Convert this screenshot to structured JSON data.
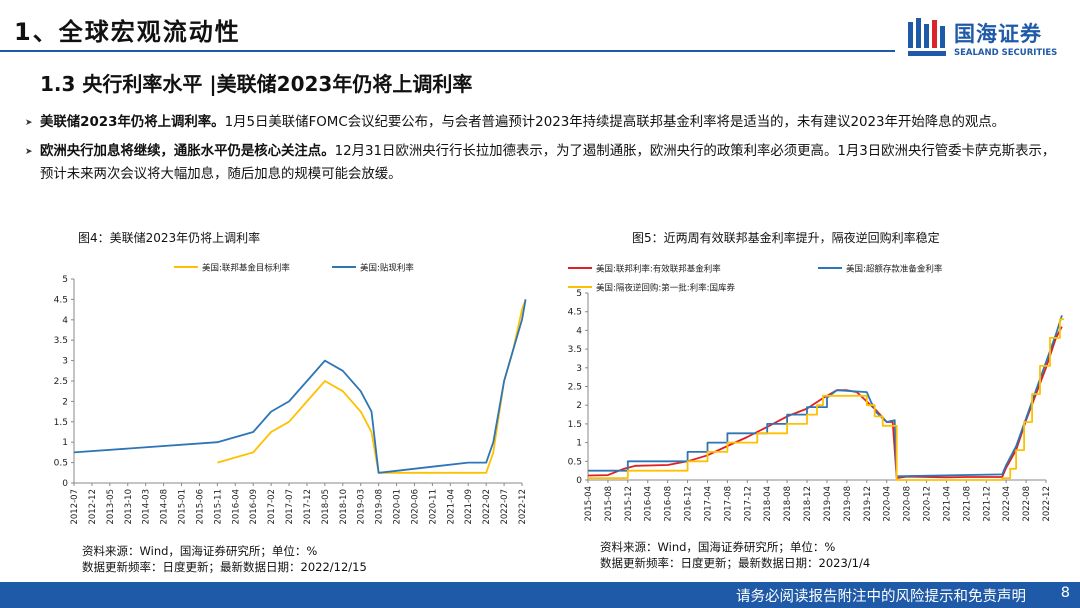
{
  "header": {
    "title": "1、全球宏观流动性"
  },
  "logo": {
    "cn": "国海证券",
    "en": "SEALAND SECURITIES"
  },
  "section": {
    "title": "1.3 央行利率水平 |美联储2023年仍将上调利率"
  },
  "bullets": [
    {
      "bold": "美联储2023年仍将上调利率。",
      "text": "1月5日美联储FOMC会议纪要公布，与会者普遍预计2023年持续提高联邦基金利率将是适当的，未有建议2023年开始降息的观点。"
    },
    {
      "bold": "欧洲央行加息将继续，通胀水平仍是核心关注点。",
      "text": "12月31日欧洲央行行长拉加德表示，为了遏制通胀，欧洲央行的政策利率必须更高。1月3日欧洲央行管委卡萨克斯表示，预计未来两次会议将大幅加息，随后加息的规模可能会放缓。"
    }
  ],
  "footer": {
    "text": "请务必阅读报告附注中的风险提示和免责声明",
    "page": "8"
  },
  "colors": {
    "brand": "#1f5aa8",
    "yellow": "#ffc000",
    "blue": "#2e75b6",
    "red": "#e02020"
  },
  "chart_data": [
    {
      "type": "line",
      "title": "图4：美联储2023年仍将上调利率",
      "source": "资料来源：Wind，国海证券研究所；单位：%",
      "update": "数据更新频率：日度更新；最新数据日期：2022/12/15",
      "ylim": [
        0,
        5
      ],
      "yticks": [
        "0",
        "0.5",
        "1",
        "1.5",
        "2",
        "2.5",
        "3",
        "3.5",
        "4",
        "4.5",
        "5"
      ],
      "xticks": [
        "2012-07",
        "2012-12",
        "2013-05",
        "2013-10",
        "2014-03",
        "2014-08",
        "2015-01",
        "2015-06",
        "2015-11",
        "2016-04",
        "2016-09",
        "2017-02",
        "2017-07",
        "2017-12",
        "2018-05",
        "2018-10",
        "2019-03",
        "2019-08",
        "2020-01",
        "2020-06",
        "2020-11",
        "2021-04",
        "2021-09",
        "2022-02",
        "2022-07",
        "2022-12"
      ],
      "series": [
        {
          "name": "美国:联邦基金目标利率",
          "color": "#ffc000",
          "points": [
            [
              8,
              0.5
            ],
            [
              10,
              0.75
            ],
            [
              11,
              1.25
            ],
            [
              12,
              1.5
            ],
            [
              13,
              2.0
            ],
            [
              14,
              2.5
            ],
            [
              15,
              2.25
            ],
            [
              16,
              1.75
            ],
            [
              16.6,
              1.25
            ],
            [
              17,
              0.25
            ],
            [
              17.2,
              0.25
            ],
            [
              18,
              0.25
            ],
            [
              19,
              0.25
            ],
            [
              20,
              0.25
            ],
            [
              21,
              0.25
            ],
            [
              22,
              0.25
            ],
            [
              23,
              0.25
            ],
            [
              23.4,
              0.75
            ],
            [
              24,
              2.5
            ],
            [
              24.5,
              3.25
            ],
            [
              25,
              4.25
            ],
            [
              25.2,
              4.5
            ]
          ]
        },
        {
          "name": "美国:贴现利率",
          "color": "#2e75b6",
          "points": [
            [
              0,
              0.75
            ],
            [
              8,
              1.0
            ],
            [
              10,
              1.25
            ],
            [
              11,
              1.75
            ],
            [
              12,
              2.0
            ],
            [
              13,
              2.5
            ],
            [
              14,
              3.0
            ],
            [
              15,
              2.75
            ],
            [
              16,
              2.25
            ],
            [
              16.6,
              1.75
            ],
            [
              17,
              0.25
            ],
            [
              18,
              0.3
            ],
            [
              20,
              0.4
            ],
            [
              22,
              0.5
            ],
            [
              23,
              0.5
            ],
            [
              23.4,
              1.0
            ],
            [
              24,
              2.5
            ],
            [
              24.5,
              3.25
            ],
            [
              25,
              4.0
            ],
            [
              25.2,
              4.5
            ]
          ]
        }
      ]
    },
    {
      "type": "line",
      "title": "图5：近两周有效联邦基金利率提升，隔夜逆回购利率稳定",
      "source": "资料来源：Wind，国海证券研究所；单位：%",
      "update": "数据更新频率：日度更新；最新数据日期：2023/1/4",
      "ylim": [
        0,
        5
      ],
      "yticks": [
        "0",
        "0.5",
        "1",
        "1.5",
        "2",
        "2.5",
        "3",
        "3.5",
        "4",
        "4.5",
        "5"
      ],
      "xticks": [
        "2015-04",
        "2015-08",
        "2015-12",
        "2016-04",
        "2016-08",
        "2016-12",
        "2017-04",
        "2017-08",
        "2017-12",
        "2018-04",
        "2018-08",
        "2018-12",
        "2019-04",
        "2019-08",
        "2019-12",
        "2020-04",
        "2020-08",
        "2020-12",
        "2021-04",
        "2021-08",
        "2021-12",
        "2022-04",
        "2022-08",
        "2022-12"
      ],
      "series": [
        {
          "name": "美国:联邦利率:有效联邦基金利率",
          "color": "#e02020",
          "points": [
            [
              0,
              0.12
            ],
            [
              1,
              0.13
            ],
            [
              1.8,
              0.3
            ],
            [
              2.4,
              0.38
            ],
            [
              4,
              0.4
            ],
            [
              5,
              0.5
            ],
            [
              6,
              0.66
            ],
            [
              7,
              0.91
            ],
            [
              8,
              1.15
            ],
            [
              9,
              1.42
            ],
            [
              10,
              1.7
            ],
            [
              11,
              1.91
            ],
            [
              11.8,
              2.19
            ],
            [
              12.5,
              2.4
            ],
            [
              13,
              2.4
            ],
            [
              13.5,
              2.35
            ],
            [
              14,
              2.1
            ],
            [
              14.5,
              1.85
            ],
            [
              15,
              1.55
            ],
            [
              15.3,
              1.55
            ],
            [
              15.5,
              0.05
            ],
            [
              16,
              0.09
            ],
            [
              17,
              0.08
            ],
            [
              18,
              0.07
            ],
            [
              19,
              0.08
            ],
            [
              20,
              0.08
            ],
            [
              20.8,
              0.08
            ],
            [
              21,
              0.33
            ],
            [
              21.5,
              0.8
            ],
            [
              22,
              1.6
            ],
            [
              22.5,
              2.3
            ],
            [
              23,
              3.0
            ],
            [
              23.5,
              3.8
            ],
            [
              23.8,
              4.1
            ]
          ]
        },
        {
          "name": "美国:超额存款准备金利率",
          "color": "#2e75b6",
          "points": [
            [
              0,
              0.25
            ],
            [
              2,
              0.25
            ],
            [
              2,
              0.5
            ],
            [
              5,
              0.5
            ],
            [
              5,
              0.75
            ],
            [
              6,
              0.75
            ],
            [
              6,
              1.0
            ],
            [
              7,
              1.0
            ],
            [
              7,
              1.25
            ],
            [
              9,
              1.25
            ],
            [
              9,
              1.5
            ],
            [
              10,
              1.5
            ],
            [
              10,
              1.75
            ],
            [
              11,
              1.75
            ],
            [
              11,
              1.95
            ],
            [
              12,
              1.95
            ],
            [
              12,
              2.2
            ],
            [
              12.5,
              2.4
            ],
            [
              14,
              2.35
            ],
            [
              14.2,
              2.1
            ],
            [
              14.5,
              1.8
            ],
            [
              15,
              1.55
            ],
            [
              15.4,
              1.6
            ],
            [
              15.5,
              0.1
            ],
            [
              20.8,
              0.15
            ],
            [
              21,
              0.4
            ],
            [
              21.5,
              0.9
            ],
            [
              22,
              1.65
            ],
            [
              22.5,
              2.4
            ],
            [
              23,
              3.15
            ],
            [
              23.5,
              3.9
            ],
            [
              23.8,
              4.4
            ]
          ]
        },
        {
          "name": "美国:隔夜逆回购:第一批:利率:国库券",
          "color": "#ffc000",
          "points": [
            [
              0,
              0.05
            ],
            [
              2,
              0.05
            ],
            [
              2,
              0.25
            ],
            [
              5,
              0.25
            ],
            [
              5,
              0.5
            ],
            [
              6,
              0.5
            ],
            [
              6,
              0.75
            ],
            [
              7,
              0.75
            ],
            [
              7,
              1.0
            ],
            [
              8.5,
              1.0
            ],
            [
              8.5,
              1.25
            ],
            [
              10,
              1.25
            ],
            [
              10,
              1.5
            ],
            [
              11,
              1.5
            ],
            [
              11,
              1.75
            ],
            [
              11.5,
              1.75
            ],
            [
              11.5,
              2.0
            ],
            [
              11.8,
              2.0
            ],
            [
              11.8,
              2.25
            ],
            [
              14,
              2.25
            ],
            [
              14,
              2.0
            ],
            [
              14.4,
              2.0
            ],
            [
              14.4,
              1.7
            ],
            [
              14.8,
              1.7
            ],
            [
              14.8,
              1.45
            ],
            [
              15.5,
              1.45
            ],
            [
              15.5,
              0.0
            ],
            [
              20.8,
              0.0
            ],
            [
              20.8,
              0.05
            ],
            [
              21.2,
              0.05
            ],
            [
              21.2,
              0.3
            ],
            [
              21.5,
              0.3
            ],
            [
              21.5,
              0.8
            ],
            [
              21.9,
              0.8
            ],
            [
              21.9,
              1.55
            ],
            [
              22.3,
              1.55
            ],
            [
              22.3,
              2.3
            ],
            [
              22.7,
              2.3
            ],
            [
              22.7,
              3.05
            ],
            [
              23.2,
              3.05
            ],
            [
              23.2,
              3.8
            ],
            [
              23.7,
              3.8
            ],
            [
              23.7,
              4.3
            ],
            [
              23.9,
              4.3
            ]
          ]
        }
      ]
    }
  ]
}
